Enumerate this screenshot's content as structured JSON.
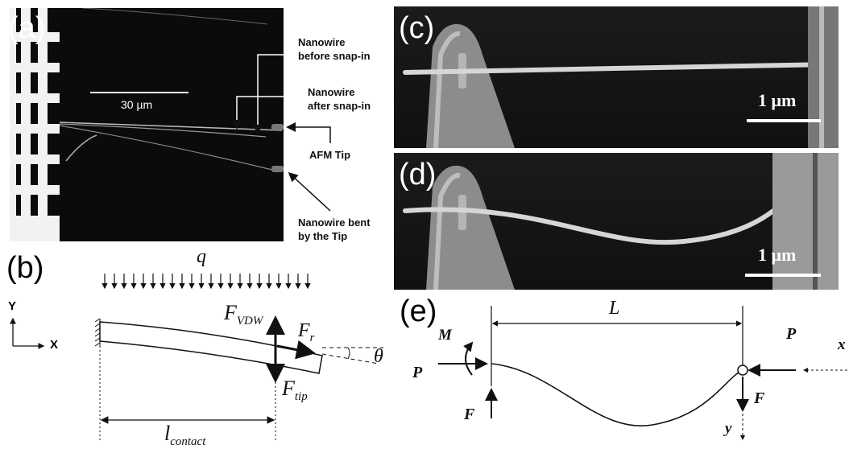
{
  "figure": {
    "panel_a": {
      "label": "(a)",
      "scale_text": "30 µm",
      "ann_before": "Nanowire before snap-in",
      "ann_before_l1": "Nanowire",
      "ann_before_l2": "before snap-in",
      "ann_after_l1": "Nanowire",
      "ann_after_l2": "after snap-in",
      "ann_tip": "AFM Tip",
      "ann_bent_l1": "Nanowire bent",
      "ann_bent_l2": "by the Tip"
    },
    "panel_b": {
      "label": "(b)",
      "q": "q",
      "axis_y": "Y",
      "axis_x": "X",
      "f_vdw": "F",
      "f_vdw_sub": "VDW",
      "f_r": "F",
      "f_r_sub": "r",
      "theta": "θ",
      "f_tip": "F",
      "f_tip_sub": "tip",
      "l_contact": "l",
      "l_contact_sub": "contact"
    },
    "panel_c": {
      "label": "(c)",
      "scale_text": "1 μm"
    },
    "panel_d": {
      "label": "(d)",
      "scale_text": "1 μm"
    },
    "panel_e": {
      "label": "(e)",
      "L": "L",
      "M": "M",
      "P_left": "P",
      "P_right": "P",
      "F_left": "F",
      "F_right": "F",
      "x": "x",
      "y": "y"
    }
  }
}
